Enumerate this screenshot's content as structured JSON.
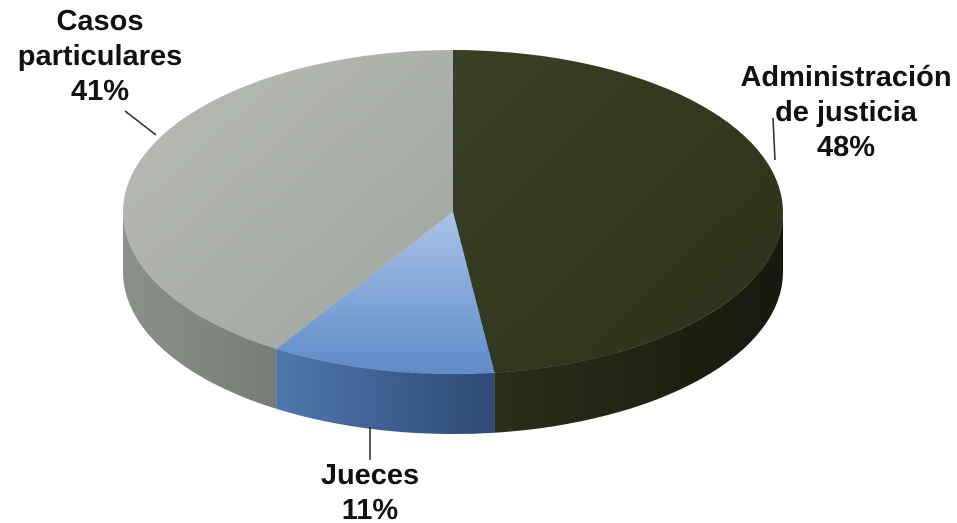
{
  "chart_data": {
    "type": "pie",
    "style": "3d",
    "title": "",
    "slices": [
      {
        "label_lines": [
          "Administración",
          "de justicia"
        ],
        "value_text": "48%",
        "value": 48,
        "color": "#343a1f"
      },
      {
        "label_lines": [
          "Jueces"
        ],
        "value_text": "11%",
        "value": 11,
        "color": "#6f98cf"
      },
      {
        "label_lines": [
          "Casos",
          "particulares"
        ],
        "value_text": "41%",
        "value": 41,
        "color": "#a8aca6"
      }
    ],
    "legend": "none"
  }
}
